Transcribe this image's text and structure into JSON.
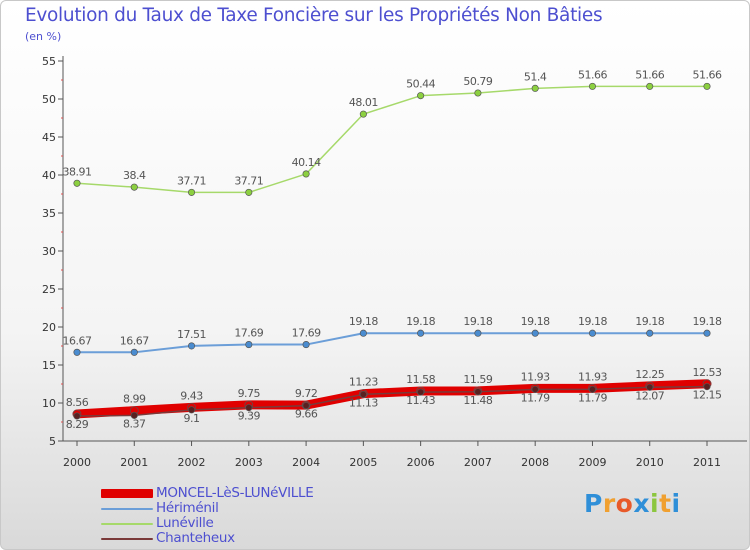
{
  "header": {
    "title": "Evolution du Taux de Taxe Foncière sur les Propriétés Non Bâties",
    "subtitle": "(en %)"
  },
  "logo": {
    "letters": [
      "P",
      "r",
      "o",
      "x",
      "i",
      "t",
      "i"
    ],
    "colors": [
      "#2f8fd8",
      "#f0a030",
      "#e85a2a",
      "#2f8fd8",
      "#8cc63f",
      "#f0a030",
      "#2f8fd8"
    ]
  },
  "chart_data": {
    "type": "line",
    "title": "Evolution du Taux de Taxe Foncière sur les Propriétés Non Bâties",
    "ylabel": "(en %)",
    "xlabel": "",
    "categories": [
      "2000",
      "2001",
      "2002",
      "2003",
      "2004",
      "2005",
      "2006",
      "2007",
      "2008",
      "2009",
      "2010",
      "2011"
    ],
    "ylim": [
      5,
      55
    ],
    "yticks": [
      "5",
      "10",
      "15",
      "20",
      "25",
      "30",
      "35",
      "40",
      "45",
      "50",
      "55"
    ],
    "grid": false,
    "series": [
      {
        "name": "MONCEL-LèS-LUNéVILLE",
        "color": "#e00000",
        "values": [
          8.56,
          8.99,
          9.43,
          9.75,
          9.72,
          11.23,
          11.58,
          11.59,
          11.93,
          11.93,
          12.25,
          12.53
        ],
        "labels": [
          "8.56",
          "8.99",
          "9.43",
          "9.75",
          "9.72",
          "11.23",
          "11.58",
          "11.59",
          "11.93",
          "11.93",
          "12.25",
          "12.53"
        ]
      },
      {
        "name": "Hériménil",
        "color": "#6b9ed8",
        "values": [
          16.67,
          16.67,
          17.51,
          17.69,
          17.69,
          19.18,
          19.18,
          19.18,
          19.18,
          19.18,
          19.18,
          19.18
        ],
        "labels": [
          "16.67",
          "16.67",
          "17.51",
          "17.69",
          "17.69",
          "19.18",
          "19.18",
          "19.18",
          "19.18",
          "19.18",
          "19.18",
          "19.18"
        ]
      },
      {
        "name": "Lunéville",
        "color": "#a6d96a",
        "values": [
          38.91,
          38.4,
          37.71,
          37.71,
          40.14,
          48.01,
          50.44,
          50.79,
          51.4,
          51.66,
          51.66,
          51.66
        ],
        "labels": [
          "38.91",
          "38.4",
          "37.71",
          "37.71",
          "40.14",
          "48.01",
          "50.44",
          "50.79",
          "51.4",
          "51.66",
          "51.66",
          "51.66"
        ]
      },
      {
        "name": "Chanteheux",
        "color": "#7a3a3a",
        "values": [
          8.29,
          8.37,
          9.1,
          9.39,
          9.66,
          11.13,
          11.43,
          11.48,
          11.79,
          11.79,
          12.07,
          12.15
        ],
        "labels": [
          "8.29",
          "8.37",
          "9.1",
          "9.39",
          "9.66",
          "11.13",
          "11.43",
          "11.48",
          "11.79",
          "11.79",
          "12.07",
          "12.15"
        ]
      }
    ]
  }
}
